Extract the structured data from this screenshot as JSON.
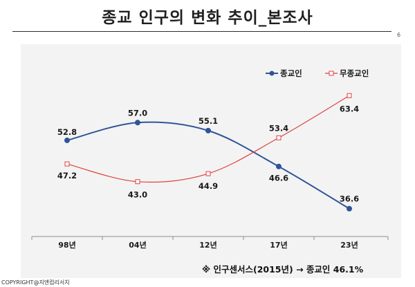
{
  "title": "종교 인구의 변화 추이_본조사",
  "page_number": "6",
  "note": "※ 인구센서스(2015년) → 종교인 46.1%",
  "copyright": "COPYRIGHT@지앤컴리서치",
  "chart_data": {
    "type": "line",
    "title": "종교 인구의 변화 추이_본조사",
    "categories": [
      "98년",
      "04년",
      "12년",
      "17년",
      "23년"
    ],
    "series": [
      {
        "name": "종교인",
        "values": [
          52.8,
          57.0,
          55.1,
          46.6,
          36.6
        ],
        "color": "#2f5597",
        "marker": "circle",
        "smooth": true
      },
      {
        "name": "무종교인",
        "values": [
          47.2,
          43.0,
          44.9,
          53.4,
          63.4
        ],
        "color": "#e04040",
        "marker": "square",
        "smooth": true
      }
    ],
    "data_labels": [
      [
        "52.8",
        "57.0",
        "55.1",
        "46.6",
        "36.6"
      ],
      [
        "47.2",
        "43.0",
        "44.9",
        "53.4",
        "63.4"
      ]
    ],
    "xlabel": "",
    "ylabel": "",
    "ylim": [
      30,
      70
    ],
    "legend": "top-right",
    "grid": false
  }
}
